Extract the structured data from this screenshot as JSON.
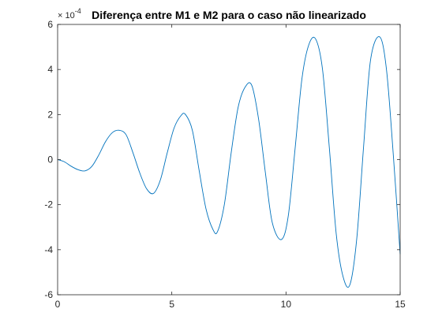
{
  "chart_data": {
    "type": "line",
    "title": "Diferença entre M1 e M2 para o caso não linearizado",
    "xlabel": "",
    "ylabel": "",
    "xlim": [
      0,
      15
    ],
    "ylim": [
      -6,
      6
    ],
    "y_exponent_label": "× 10",
    "y_exponent_power": "-4",
    "x_ticks": [
      0,
      5,
      10,
      15
    ],
    "x_tick_labels": [
      "0",
      "5",
      "10",
      "15"
    ],
    "y_ticks": [
      -6,
      -4,
      -2,
      0,
      2,
      4,
      6
    ],
    "y_tick_labels": [
      "-6",
      "-4",
      "-2",
      "0",
      "2",
      "4",
      "6"
    ],
    "grid": false,
    "series": [
      {
        "color": "#0072BD",
        "x": [
          0,
          0.3,
          0.6,
          0.9,
          1.2,
          1.5,
          1.8,
          2.1,
          2.4,
          2.7,
          3.0,
          3.3,
          3.6,
          3.9,
          4.2,
          4.5,
          4.8,
          5.1,
          5.4,
          5.6,
          5.9,
          6.2,
          6.5,
          6.8,
          7.0,
          7.3,
          7.6,
          7.9,
          8.2,
          8.5,
          8.8,
          9.1,
          9.4,
          9.8,
          10.1,
          10.4,
          10.7,
          11.0,
          11.3,
          11.6,
          11.9,
          12.2,
          12.5,
          12.8,
          13.1,
          13.4,
          13.7,
          14.1,
          14.4,
          14.7,
          15.0
        ],
        "y": [
          0,
          -0.1,
          -0.3,
          -0.45,
          -0.5,
          -0.3,
          0.2,
          0.8,
          1.2,
          1.3,
          1.1,
          0.3,
          -0.6,
          -1.3,
          -1.5,
          -0.9,
          0.3,
          1.4,
          1.95,
          2.0,
          1.3,
          -0.5,
          -2.2,
          -3.1,
          -3.2,
          -2.0,
          0.3,
          2.3,
          3.2,
          3.3,
          1.8,
          -0.6,
          -2.8,
          -3.55,
          -2.5,
          0.5,
          3.6,
          5.1,
          5.35,
          4.0,
          0.5,
          -3.3,
          -5.2,
          -5.55,
          -3.5,
          0.6,
          4.4,
          5.45,
          4.0,
          0.2,
          -4.2
        ]
      }
    ]
  }
}
